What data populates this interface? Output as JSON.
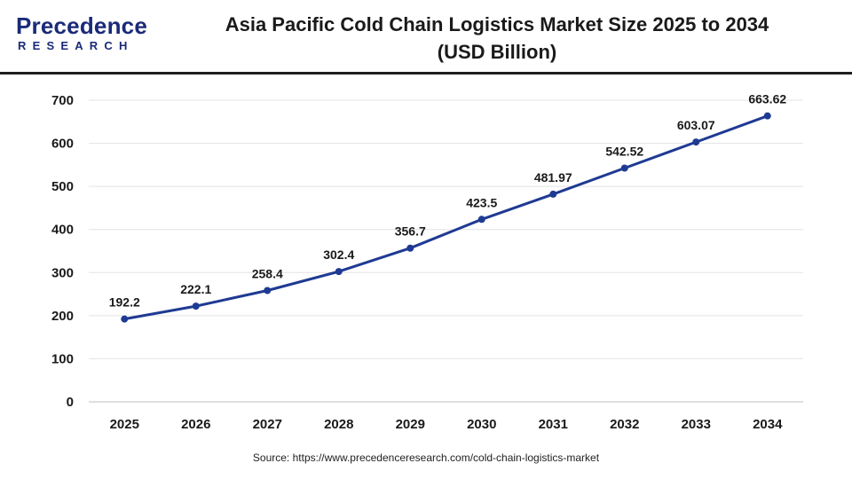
{
  "brand": {
    "logo_top": "Precedence",
    "logo_bottom": "RESEARCH",
    "color": "#1b2a78"
  },
  "header": {
    "title_line1": "Asia Pacific Cold Chain Logistics Market Size 2025 to 2034",
    "title_line2": "(USD Billion)"
  },
  "footer": {
    "source": "Source: https://www.precedenceresearch.com/cold-chain-logistics-market"
  },
  "chart_data": {
    "type": "line",
    "title": "Asia Pacific Cold Chain Logistics Market Size 2025 to 2034 (USD Billion)",
    "xlabel": "",
    "ylabel": "",
    "categories": [
      "2025",
      "2026",
      "2027",
      "2028",
      "2029",
      "2030",
      "2031",
      "2032",
      "2033",
      "2034"
    ],
    "series": [
      {
        "values": [
          192.2,
          222.1,
          258.4,
          302.4,
          356.7,
          423.5,
          481.97,
          542.52,
          603.07,
          663.62
        ],
        "labels": [
          "192.2",
          "222.1",
          "258.4",
          "302.4",
          "356.7",
          "423.5",
          "481.97",
          "542.52",
          "603.07",
          "663.62"
        ],
        "color": "#1f3a93"
      }
    ],
    "ylim": [
      0,
      700
    ],
    "yticks": [
      0,
      100,
      200,
      300,
      400,
      500,
      600,
      700
    ],
    "grid": true,
    "legend": "none"
  }
}
